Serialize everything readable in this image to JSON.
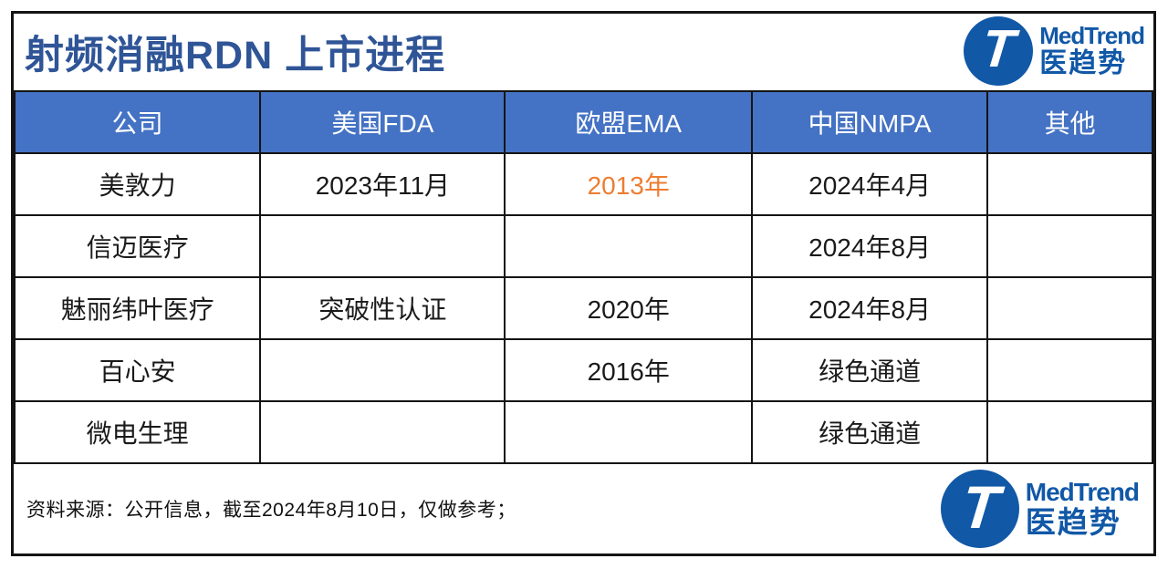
{
  "title": "射频消融RDN 上市进程",
  "logo": {
    "t": "T",
    "name_en": "MedTrend",
    "name_zh": "医趋势"
  },
  "table": {
    "headers": [
      "公司",
      "美国FDA",
      "欧盟EMA",
      "中国NMPA",
      "其他"
    ],
    "rows": [
      {
        "cells": [
          "美敦力",
          "2023年11月",
          "2013年",
          "2024年4月",
          ""
        ]
      },
      {
        "cells": [
          "信迈医疗",
          "",
          "",
          "2024年8月",
          ""
        ]
      },
      {
        "cells": [
          "魅丽纬叶医疗",
          "突破性认证",
          "2020年",
          "2024年8月",
          ""
        ]
      },
      {
        "cells": [
          "百心安",
          "",
          "2016年",
          "绿色通道",
          ""
        ]
      },
      {
        "cells": [
          "微电生理",
          "",
          "",
          "绿色通道",
          ""
        ]
      }
    ],
    "highlight_cell": {
      "row": 0,
      "col": 2,
      "color": "#ED7D31"
    }
  },
  "footer": "资料来源：公开信息，截至2024年8月10日，仅做参考；",
  "colors": {
    "title_text": "#2F5597",
    "header_bg": "#4472C4",
    "header_text": "#FFFFFF",
    "cell_text": "#1A1A1A",
    "highlight_text": "#ED7D31",
    "logo_blue": "#1158A7",
    "grid_line": "#141414",
    "background": "#FFFFFF"
  }
}
